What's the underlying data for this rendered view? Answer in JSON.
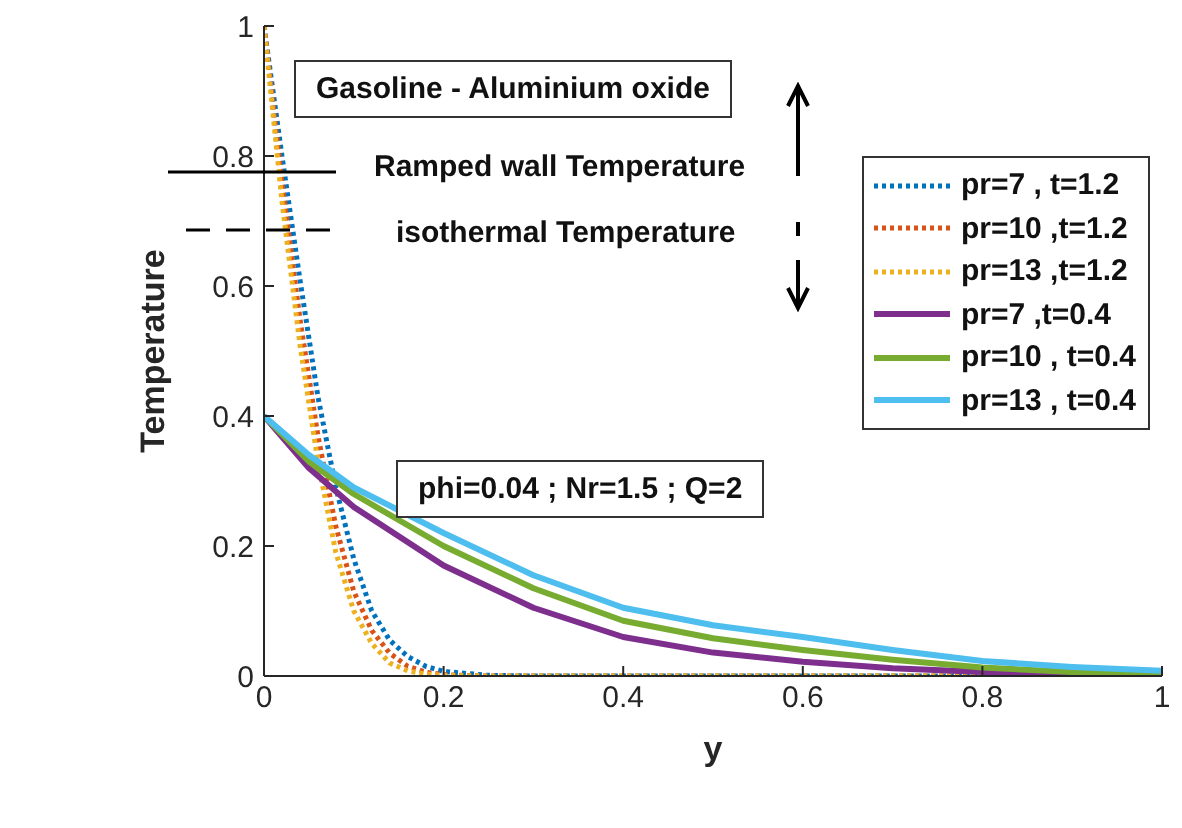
{
  "chart_data": {
    "type": "line",
    "xlabel": "y",
    "ylabel": "Temperature",
    "xlim": [
      0,
      1
    ],
    "ylim": [
      0,
      1
    ],
    "xticks": [
      0,
      0.2,
      0.4,
      0.6,
      0.8,
      1
    ],
    "yticks": [
      0,
      0.2,
      0.4,
      0.6,
      0.8,
      1
    ],
    "grid": false,
    "legend": "top right",
    "marker": "none",
    "annotations": [
      "Gasoline - Aluminium oxide",
      "Ramped wall Temperature",
      "isothermal Temperature",
      "phi=0.04 ; Nr=1.5 ; Q=2"
    ],
    "series": [
      {
        "name": "pr=7 , t=1.2",
        "color": "#0072bd",
        "line_style": "dotted",
        "x": [
          0,
          0.02,
          0.04,
          0.06,
          0.08,
          0.1,
          0.12,
          0.14,
          0.16,
          0.18,
          0.2,
          0.25,
          0.3,
          1
        ],
        "values": [
          1,
          0.8,
          0.61,
          0.43,
          0.29,
          0.18,
          0.1,
          0.055,
          0.03,
          0.015,
          0.007,
          0.001,
          0,
          0
        ]
      },
      {
        "name": "pr=10 ,t=1.2",
        "color": "#d95319",
        "line_style": "dotted",
        "x": [
          0,
          0.02,
          0.04,
          0.06,
          0.08,
          0.1,
          0.12,
          0.14,
          0.16,
          0.18,
          0.2,
          0.25,
          1
        ],
        "values": [
          1,
          0.76,
          0.55,
          0.37,
          0.23,
          0.13,
          0.07,
          0.035,
          0.015,
          0.006,
          0.002,
          0,
          0
        ]
      },
      {
        "name": "pr=13 ,t=1.2",
        "color": "#edb120",
        "line_style": "dotted",
        "x": [
          0,
          0.02,
          0.04,
          0.06,
          0.08,
          0.1,
          0.12,
          0.14,
          0.16,
          0.18,
          0.2,
          0.25,
          1
        ],
        "values": [
          1,
          0.73,
          0.51,
          0.33,
          0.19,
          0.1,
          0.05,
          0.02,
          0.008,
          0.003,
          0.001,
          0,
          0
        ]
      },
      {
        "name": "pr=7 ,t=0.4",
        "color": "#7e2f8e",
        "line_style": "solid",
        "x": [
          0,
          0.05,
          0.1,
          0.2,
          0.3,
          0.4,
          0.5,
          0.6,
          0.7,
          0.8,
          0.9,
          1
        ],
        "values": [
          0.4,
          0.32,
          0.26,
          0.17,
          0.105,
          0.06,
          0.036,
          0.022,
          0.012,
          0.006,
          0.002,
          0
        ]
      },
      {
        "name": "pr=10 , t=0.4",
        "color": "#77ac30",
        "line_style": "solid",
        "x": [
          0,
          0.05,
          0.1,
          0.2,
          0.3,
          0.4,
          0.5,
          0.6,
          0.7,
          0.8,
          0.9,
          1
        ],
        "values": [
          0.4,
          0.33,
          0.28,
          0.2,
          0.135,
          0.085,
          0.058,
          0.04,
          0.025,
          0.013,
          0.006,
          0.003
        ]
      },
      {
        "name": "pr=13 , t=0.4",
        "color": "#4dbeee",
        "line_style": "solid",
        "x": [
          0,
          0.05,
          0.1,
          0.2,
          0.3,
          0.4,
          0.5,
          0.6,
          0.7,
          0.8,
          0.9,
          1
        ],
        "values": [
          0.4,
          0.34,
          0.29,
          0.22,
          0.155,
          0.105,
          0.078,
          0.06,
          0.04,
          0.023,
          0.014,
          0.008
        ]
      }
    ]
  }
}
